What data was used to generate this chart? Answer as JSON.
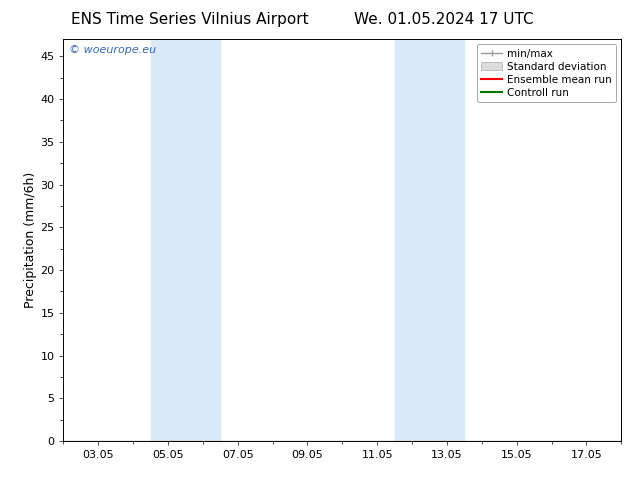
{
  "title_left": "ENS Time Series Vilnius Airport",
  "title_right": "We. 01.05.2024 17 UTC",
  "ylabel": "Precipitation (mm/6h)",
  "ylim": [
    0,
    47
  ],
  "yticks": [
    0,
    5,
    10,
    15,
    20,
    25,
    30,
    35,
    40,
    45
  ],
  "xtick_labels": [
    "03.05",
    "05.05",
    "07.05",
    "09.05",
    "11.05",
    "13.05",
    "15.05",
    "17.05"
  ],
  "xtick_positions": [
    2,
    4,
    6,
    8,
    10,
    12,
    14,
    16
  ],
  "xlim": [
    1,
    17
  ],
  "shaded_regions": [
    {
      "xmin": 3.5,
      "xmax": 5.5,
      "color": "#daeaf8"
    },
    {
      "xmin": 10.5,
      "xmax": 12.5,
      "color": "#daeaf8"
    }
  ],
  "watermark": "© woeurope.eu",
  "watermark_color": "#3366cc",
  "legend_labels": [
    "min/max",
    "Standard deviation",
    "Ensemble mean run",
    "Controll run"
  ],
  "legend_colors": [
    "#999999",
    "#cccccc",
    "#ff0000",
    "#007700"
  ],
  "bg_color": "#ffffff",
  "plot_bg_color": "#ffffff",
  "title_fontsize": 11,
  "ylabel_fontsize": 9,
  "tick_fontsize": 8,
  "legend_fontsize": 7.5,
  "watermark_fontsize": 8
}
